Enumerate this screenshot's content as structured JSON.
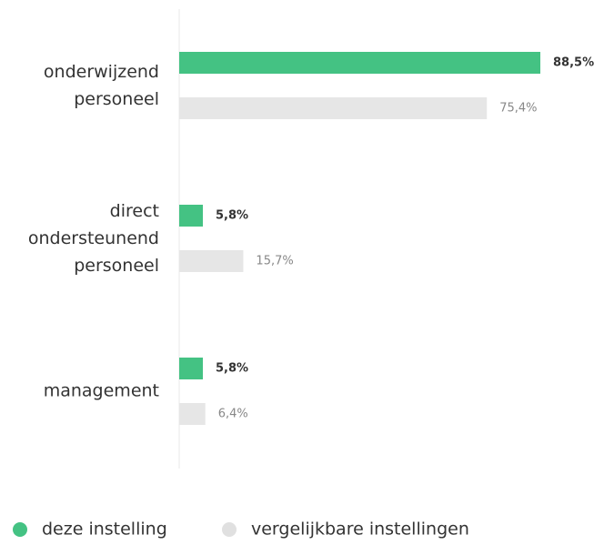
{
  "chart_data": {
    "type": "bar",
    "orientation": "horizontal",
    "categories": [
      "onderwijzend personeel",
      "direct ondersteunend personeel",
      "management"
    ],
    "series": [
      {
        "name": "deze instelling",
        "color": "#44c283",
        "values": [
          88.5,
          5.8,
          5.8
        ],
        "value_labels": [
          "88,5%",
          "5,8%",
          "5,8%"
        ]
      },
      {
        "name": "vergelijkbare instellingen",
        "color": "#e6e6e6",
        "values": [
          75.4,
          15.7,
          6.4
        ],
        "value_labels": [
          "75,4%",
          "15,7%",
          "6,4%"
        ]
      }
    ]
  }
}
